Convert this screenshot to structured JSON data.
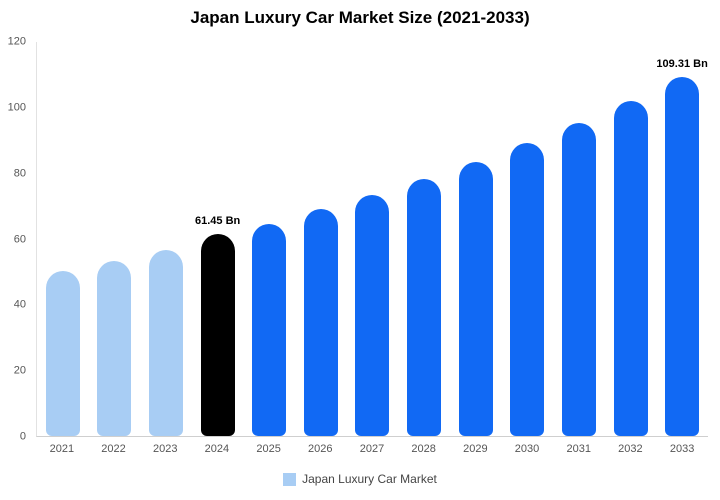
{
  "title": "Japan Luxury Car Market Size (2021-2033)",
  "legend": {
    "label": "Japan Luxury Car Market",
    "swatch_color": "#a8cdf4"
  },
  "colors": {
    "historical": "#a8cdf4",
    "base_year": "#000000",
    "forecast": "#1169f4",
    "axis_text": "#555555"
  },
  "chart_data": {
    "type": "bar",
    "title": "Japan Luxury Car Market Size (2021-2033)",
    "categories": [
      "2021",
      "2022",
      "2023",
      "2024",
      "2025",
      "2026",
      "2027",
      "2028",
      "2029",
      "2030",
      "2031",
      "2032",
      "2033"
    ],
    "values": [
      50.2,
      53.2,
      56.8,
      61.45,
      64.7,
      69.0,
      73.4,
      78.2,
      83.6,
      89.2,
      95.4,
      101.9,
      109.31
    ],
    "bar_colors": [
      "#a8cdf4",
      "#a8cdf4",
      "#a8cdf4",
      "#000000",
      "#1169f4",
      "#1169f4",
      "#1169f4",
      "#1169f4",
      "#1169f4",
      "#1169f4",
      "#1169f4",
      "#1169f4",
      "#1169f4"
    ],
    "data_labels": [
      "",
      "",
      "",
      "61.45 Bn",
      "",
      "",
      "",
      "",
      "",
      "",
      "",
      "",
      "109.31 Bn"
    ],
    "xlabel": "",
    "ylabel": "",
    "ylim": [
      0,
      120
    ],
    "yticks": [
      0,
      20,
      40,
      60,
      80,
      100,
      120
    ],
    "grid": false,
    "legend_position": "bottom",
    "legend_entries": [
      "Japan Luxury Car Market"
    ]
  }
}
